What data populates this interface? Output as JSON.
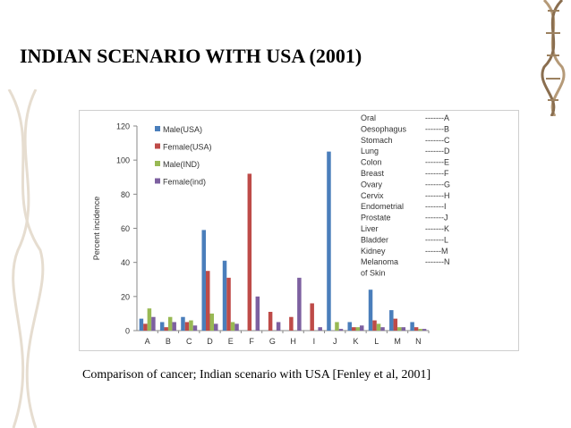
{
  "slide": {
    "title": "INDIAN SCENARIO WITH USA (2001)",
    "caption": "Comparison of cancer; Indian scenario with USA [Fenley et al, 2001]"
  },
  "colors": {
    "male_usa": "#4a7ebb",
    "female_usa": "#be4b48",
    "male_ind": "#98b954",
    "female_ind": "#7d60a0",
    "decor": "#c9b89a"
  },
  "chart_data": {
    "type": "bar",
    "title": "",
    "xlabel": "",
    "ylabel": "Percent incidence",
    "ylim": [
      0,
      120
    ],
    "yticks": [
      0,
      20,
      40,
      60,
      80,
      100,
      120
    ],
    "grid": false,
    "legend_position": "top-left",
    "categories": [
      "A",
      "B",
      "C",
      "D",
      "E",
      "F",
      "G",
      "H",
      "I",
      "J",
      "K",
      "L",
      "M",
      "N"
    ],
    "series": [
      {
        "name": "Male(USA)",
        "color": "#4a7ebb",
        "values": [
          7,
          5,
          8,
          59,
          41,
          0,
          0,
          0,
          0,
          105,
          5,
          24,
          12,
          5
        ]
      },
      {
        "name": "Female(USA)",
        "color": "#be4b48",
        "values": [
          4,
          2,
          5,
          35,
          31,
          92,
          11,
          8,
          16,
          0,
          2,
          6,
          7,
          2
        ]
      },
      {
        "name": "Male(IND)",
        "color": "#98b954",
        "values": [
          13,
          8,
          6,
          10,
          5,
          0,
          0,
          0,
          0,
          5,
          2,
          4,
          2,
          1
        ]
      },
      {
        "name": "Female(ind)",
        "color": "#7d60a0",
        "values": [
          8,
          5,
          3,
          4,
          4,
          20,
          5,
          31,
          2,
          1,
          3,
          2,
          2,
          1
        ]
      }
    ],
    "site_key": [
      {
        "site": "Oral",
        "code": "-------A"
      },
      {
        "site": "Oesophagus",
        "code": "-------B"
      },
      {
        "site": "Stomach",
        "code": "-------C"
      },
      {
        "site": "Lung",
        "code": "-------D"
      },
      {
        "site": "Colon",
        "code": "-------E"
      },
      {
        "site": "Breast",
        "code": "-------F"
      },
      {
        "site": "Ovary",
        "code": "-------G"
      },
      {
        "site": "Cervix",
        "code": "-------H"
      },
      {
        "site": "Endometrial",
        "code": "-------I"
      },
      {
        "site": "Prostate",
        "code": "-------J"
      },
      {
        "site": "Liver",
        "code": "-------K"
      },
      {
        "site": "Bladder",
        "code": "-------L"
      },
      {
        "site": "Kidney",
        "code": "------M"
      },
      {
        "site": "Melanoma",
        "code": "-------N"
      },
      {
        "site": "of Skin",
        "code": ""
      }
    ]
  }
}
